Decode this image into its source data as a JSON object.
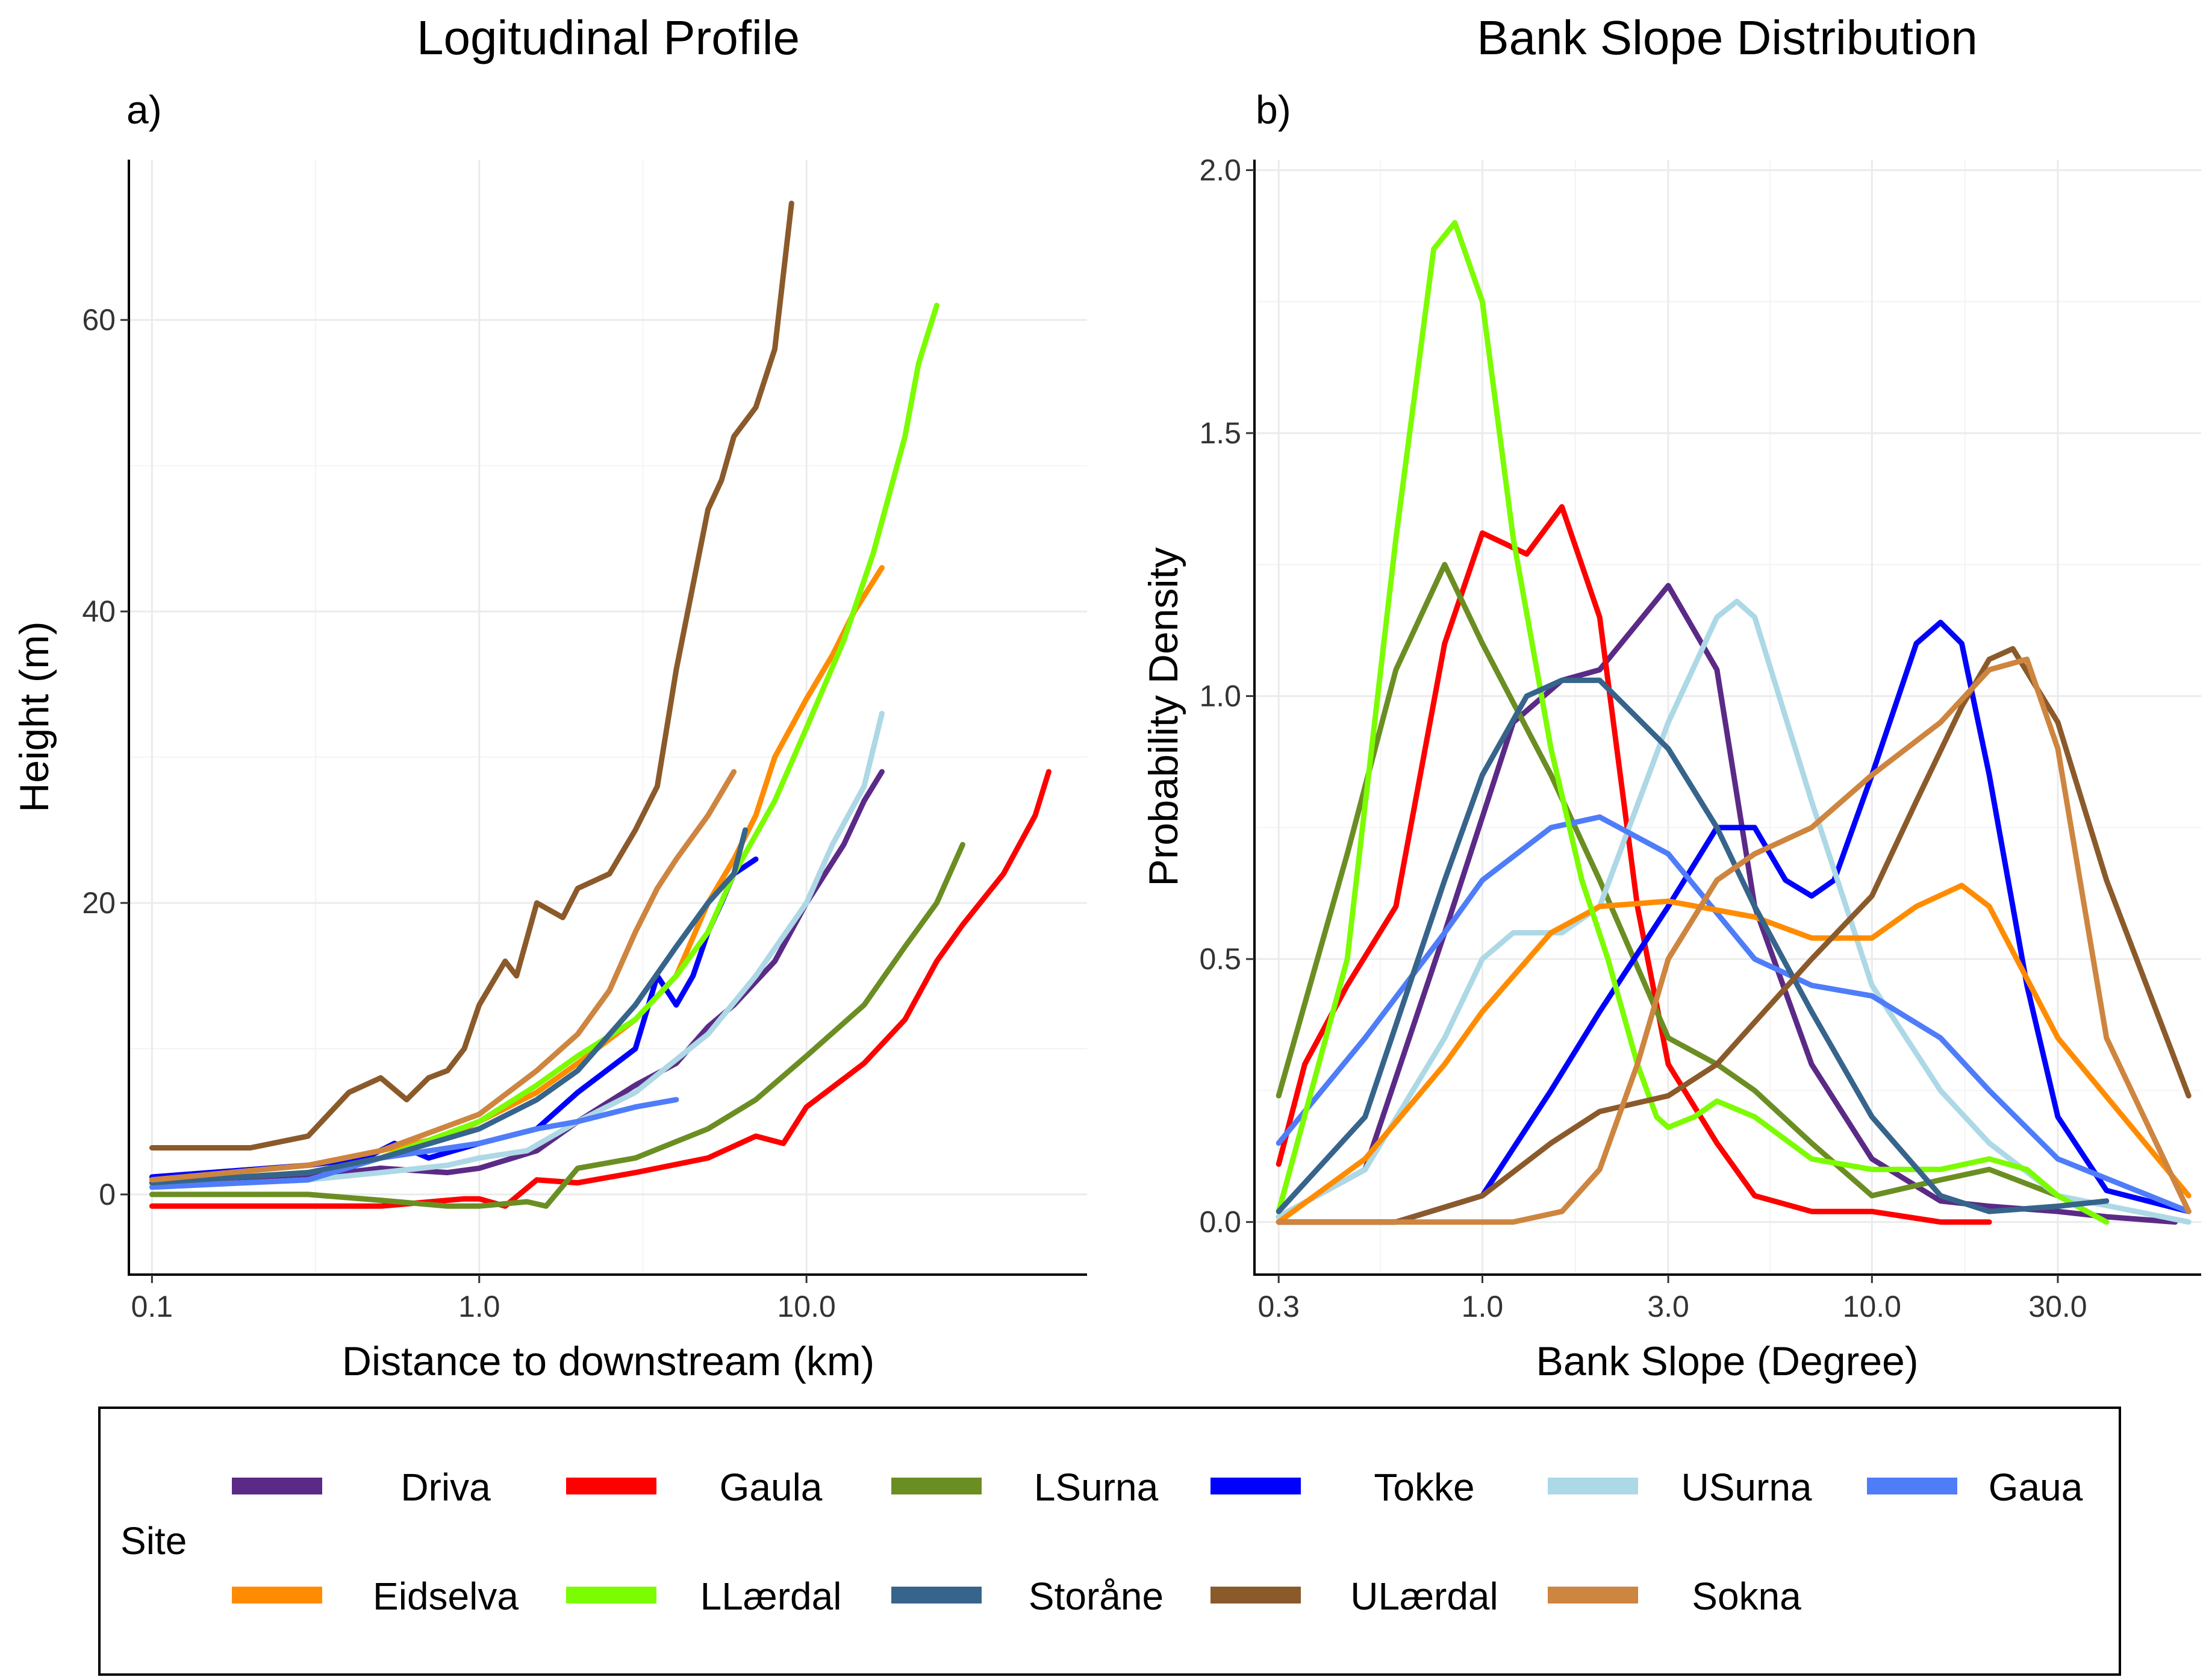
{
  "chart_data": [
    {
      "panel": "a)",
      "type": "line",
      "title": "Logitudinal Profile",
      "xlabel": "Distance to downstream (km)",
      "ylabel": "Height (m)",
      "xscale": "log10",
      "xlim": [
        0.085,
        72
      ],
      "ylim": [
        -5.5,
        71
      ],
      "xticks": [
        0.1,
        1.0,
        10.0
      ],
      "xtick_labels": [
        "0.1",
        "1.0",
        "10.0"
      ],
      "yticks": [
        0,
        20,
        40,
        60
      ],
      "ytick_labels": [
        "0",
        "20",
        "40",
        "60"
      ],
      "series": [
        {
          "name": "Driva",
          "x": [
            0.1,
            0.3,
            0.5,
            0.8,
            1.0,
            1.5,
            2.0,
            3.0,
            4.0,
            5.0,
            6.0,
            8.0,
            10.0,
            13.0,
            15.0,
            17.0
          ],
          "y": [
            0.8,
            1.2,
            1.8,
            1.5,
            1.8,
            3.0,
            5.0,
            7.5,
            9.0,
            11.5,
            13.0,
            16.0,
            20.0,
            24.0,
            27.0,
            29.0
          ]
        },
        {
          "name": "Gaula",
          "x": [
            0.1,
            0.5,
            0.9,
            1.0,
            1.2,
            1.5,
            2.0,
            3.0,
            5.0,
            7.0,
            8.5,
            10.0,
            15.0,
            20.0,
            25.0,
            30.0,
            40.0,
            50.0,
            55.0
          ],
          "y": [
            -0.8,
            -0.8,
            -0.3,
            -0.3,
            -0.8,
            1.0,
            0.8,
            1.5,
            2.5,
            4.0,
            3.5,
            6.0,
            9.0,
            12.0,
            16.0,
            18.5,
            22.0,
            26.0,
            29.0
          ]
        },
        {
          "name": "LSurna",
          "x": [
            0.1,
            0.3,
            0.5,
            0.8,
            1.0,
            1.4,
            1.6,
            2.0,
            3.0,
            5.0,
            7.0,
            10.0,
            15.0,
            20.0,
            25.0,
            30.0
          ],
          "y": [
            0.0,
            0.0,
            -0.4,
            -0.8,
            -0.8,
            -0.5,
            -0.8,
            1.8,
            2.5,
            4.5,
            6.5,
            9.5,
            13.0,
            17.0,
            20.0,
            24.0
          ]
        },
        {
          "name": "Tokke",
          "x": [
            0.1,
            0.3,
            0.45,
            0.55,
            0.7,
            1.0,
            1.5,
            2.0,
            3.0,
            3.5,
            4.0,
            4.5,
            5.0,
            5.5,
            6.0,
            7.0
          ],
          "y": [
            1.2,
            2.0,
            2.5,
            3.5,
            2.5,
            3.5,
            4.5,
            7.0,
            10.0,
            15.0,
            13.0,
            15.0,
            18.0,
            20.0,
            22.0,
            23.0
          ]
        },
        {
          "name": "USurna",
          "x": [
            0.1,
            0.3,
            0.5,
            0.8,
            1.0,
            1.4,
            2.0,
            3.0,
            5.0,
            7.0,
            10.0,
            12.0,
            15.0,
            17.0
          ],
          "y": [
            0.5,
            1.0,
            1.5,
            2.0,
            2.5,
            3.0,
            5.0,
            7.0,
            11.0,
            15.0,
            20.0,
            24.0,
            28.0,
            33.0
          ]
        },
        {
          "name": "Gaua",
          "x": [
            0.1,
            0.3,
            0.5,
            1.0,
            1.5,
            2.0,
            3.0,
            4.0
          ],
          "y": [
            0.5,
            1.0,
            2.5,
            3.5,
            4.5,
            5.0,
            6.0,
            6.5
          ]
        },
        {
          "name": "Eidselva",
          "x": [
            0.1,
            0.3,
            0.5,
            0.8,
            1.0,
            1.5,
            2.0,
            3.0,
            4.0,
            5.0,
            6.0,
            7.0,
            8.0,
            10.0,
            12.0,
            14.0,
            17.0
          ],
          "y": [
            1.0,
            2.0,
            3.0,
            4.0,
            5.0,
            7.0,
            9.0,
            12.0,
            15.0,
            20.0,
            23.0,
            26.0,
            30.0,
            34.0,
            37.0,
            40.0,
            43.0
          ]
        },
        {
          "name": "LLærdal",
          "x": [
            0.1,
            0.3,
            0.5,
            1.0,
            1.5,
            2.0,
            3.0,
            4.0,
            5.0,
            6.0,
            8.0,
            10.0,
            13.0,
            16.0,
            20.0,
            22.0,
            25.0
          ],
          "y": [
            0.8,
            1.5,
            2.5,
            5.0,
            7.5,
            9.5,
            12.0,
            15.0,
            18.0,
            22.0,
            27.0,
            32.0,
            38.0,
            44.0,
            52.0,
            57.0,
            61.0
          ]
        },
        {
          "name": "Storåne",
          "x": [
            0.1,
            0.3,
            0.5,
            1.0,
            1.5,
            2.0,
            3.0,
            4.0,
            5.0,
            6.0,
            6.5
          ],
          "y": [
            0.8,
            1.5,
            2.5,
            4.5,
            6.5,
            8.5,
            13.0,
            17.0,
            20.0,
            22.0,
            25.0
          ]
        },
        {
          "name": "ULærdal",
          "x": [
            0.1,
            0.2,
            0.3,
            0.4,
            0.5,
            0.6,
            0.7,
            0.8,
            0.9,
            1.0,
            1.2,
            1.3,
            1.5,
            1.8,
            2.0,
            2.5,
            3.0,
            3.5,
            4.0,
            5.0,
            5.5,
            6.0,
            7.0,
            8.0,
            9.0
          ],
          "y": [
            3.2,
            3.2,
            4.0,
            7.0,
            8.0,
            6.5,
            8.0,
            8.5,
            10.0,
            13.0,
            16.0,
            15.0,
            20.0,
            19.0,
            21.0,
            22.0,
            25.0,
            28.0,
            36.0,
            47.0,
            49.0,
            52.0,
            54.0,
            58.0,
            68.0
          ]
        },
        {
          "name": "Sokna",
          "x": [
            0.1,
            0.3,
            0.5,
            1.0,
            1.5,
            2.0,
            2.5,
            3.0,
            3.5,
            4.0,
            5.0,
            6.0
          ],
          "y": [
            1.0,
            2.0,
            3.0,
            5.5,
            8.5,
            11.0,
            14.0,
            18.0,
            21.0,
            23.0,
            26.0,
            29.0
          ]
        }
      ]
    },
    {
      "panel": "b)",
      "type": "line",
      "title": "Bank Slope Distribution",
      "xlabel": "Bank Slope (Degree)",
      "ylabel": "Probability Density",
      "xscale": "log10",
      "xlim": [
        0.26,
        70
      ],
      "ylim": [
        -0.1,
        2.02
      ],
      "xticks": [
        0.3,
        1.0,
        3.0,
        10.0,
        30.0
      ],
      "xtick_labels": [
        "0.3",
        "1.0",
        "3.0",
        "10.0",
        "30.0"
      ],
      "yticks": [
        0.0,
        0.5,
        1.0,
        1.5,
        2.0
      ],
      "ytick_labels": [
        "0.0",
        "0.5",
        "1.0",
        "1.5",
        "2.0"
      ],
      "series": [
        {
          "name": "Driva",
          "x": [
            0.3,
            0.5,
            0.8,
            1.2,
            1.6,
            2.0,
            3.0,
            4.0,
            5.0,
            7.0,
            10.0,
            15.0,
            20.0,
            30.0,
            40.0,
            60.0
          ],
          "y": [
            0.01,
            0.1,
            0.55,
            0.95,
            1.03,
            1.05,
            1.21,
            1.05,
            0.6,
            0.3,
            0.12,
            0.04,
            0.03,
            0.02,
            0.01,
            0.0
          ]
        },
        {
          "name": "Gaula",
          "x": [
            0.3,
            0.35,
            0.45,
            0.6,
            0.8,
            1.0,
            1.3,
            1.6,
            2.0,
            2.5,
            3.0,
            4.0,
            5.0,
            7.0,
            10.0,
            15.0,
            20.0
          ],
          "y": [
            0.11,
            0.3,
            0.45,
            0.6,
            1.1,
            1.31,
            1.27,
            1.36,
            1.15,
            0.6,
            0.3,
            0.15,
            0.05,
            0.02,
            0.02,
            0.0,
            0.0
          ]
        },
        {
          "name": "LSurna",
          "x": [
            0.3,
            0.45,
            0.6,
            0.8,
            1.0,
            1.5,
            2.0,
            3.0,
            4.0,
            5.0,
            7.0,
            10.0,
            15.0,
            20.0,
            30.0,
            40.0
          ],
          "y": [
            0.24,
            0.7,
            1.05,
            1.25,
            1.1,
            0.85,
            0.65,
            0.35,
            0.3,
            0.25,
            0.15,
            0.05,
            0.08,
            0.1,
            0.05,
            0.0
          ]
        },
        {
          "name": "Tokke",
          "x": [
            0.3,
            0.6,
            1.0,
            1.5,
            2.0,
            3.0,
            4.0,
            5.0,
            6.0,
            7.0,
            8.0,
            10.0,
            13.0,
            15.0,
            17.0,
            20.0,
            25.0,
            30.0,
            40.0,
            65.0
          ],
          "y": [
            0.0,
            0.0,
            0.05,
            0.25,
            0.4,
            0.6,
            0.75,
            0.75,
            0.65,
            0.62,
            0.65,
            0.85,
            1.1,
            1.14,
            1.1,
            0.85,
            0.45,
            0.2,
            0.06,
            0.02
          ]
        },
        {
          "name": "USurna",
          "x": [
            0.3,
            0.5,
            0.8,
            1.0,
            1.2,
            1.6,
            2.0,
            3.0,
            4.0,
            4.5,
            5.0,
            7.0,
            10.0,
            15.0,
            20.0,
            30.0,
            65.0
          ],
          "y": [
            0.01,
            0.1,
            0.35,
            0.5,
            0.55,
            0.55,
            0.6,
            0.95,
            1.15,
            1.18,
            1.15,
            0.8,
            0.45,
            0.25,
            0.15,
            0.05,
            0.0
          ]
        },
        {
          "name": "Gaua",
          "x": [
            0.3,
            0.5,
            0.8,
            1.0,
            1.5,
            2.0,
            3.0,
            5.0,
            7.0,
            10.0,
            15.0,
            20.0,
            30.0,
            65.0
          ],
          "y": [
            0.15,
            0.35,
            0.55,
            0.65,
            0.75,
            0.77,
            0.7,
            0.5,
            0.45,
            0.43,
            0.35,
            0.25,
            0.12,
            0.02
          ]
        },
        {
          "name": "Eidselva",
          "x": [
            0.3,
            0.5,
            0.8,
            1.0,
            1.5,
            2.0,
            3.0,
            5.0,
            7.0,
            10.0,
            13.0,
            17.0,
            20.0,
            30.0,
            65.0
          ],
          "y": [
            0.0,
            0.12,
            0.3,
            0.4,
            0.55,
            0.6,
            0.61,
            0.58,
            0.54,
            0.54,
            0.6,
            0.64,
            0.6,
            0.35,
            0.05
          ]
        },
        {
          "name": "LLærdal",
          "x": [
            0.3,
            0.45,
            0.6,
            0.75,
            0.85,
            1.0,
            1.2,
            1.5,
            1.8,
            2.1,
            2.5,
            2.8,
            3.0,
            3.5,
            4.0,
            5.0,
            7.0,
            10.0,
            15.0,
            20.0,
            25.0,
            30.0,
            40.0
          ],
          "y": [
            0.02,
            0.5,
            1.3,
            1.85,
            1.9,
            1.75,
            1.3,
            0.9,
            0.65,
            0.5,
            0.3,
            0.2,
            0.18,
            0.2,
            0.23,
            0.2,
            0.12,
            0.1,
            0.1,
            0.12,
            0.1,
            0.05,
            0.0
          ]
        },
        {
          "name": "Storåne",
          "x": [
            0.3,
            0.5,
            0.8,
            1.0,
            1.3,
            1.6,
            2.0,
            3.0,
            4.0,
            5.0,
            7.0,
            10.0,
            15.0,
            20.0,
            30.0,
            40.0
          ],
          "y": [
            0.02,
            0.2,
            0.65,
            0.85,
            1.0,
            1.03,
            1.03,
            0.9,
            0.75,
            0.6,
            0.4,
            0.2,
            0.05,
            0.02,
            0.03,
            0.04
          ]
        },
        {
          "name": "ULærdal",
          "x": [
            0.3,
            0.6,
            1.0,
            1.5,
            2.0,
            3.0,
            4.0,
            5.0,
            7.0,
            10.0,
            13.0,
            17.0,
            20.0,
            23.0,
            30.0,
            40.0,
            65.0
          ],
          "y": [
            0.0,
            0.0,
            0.05,
            0.15,
            0.21,
            0.24,
            0.3,
            0.38,
            0.5,
            0.62,
            0.8,
            0.98,
            1.07,
            1.09,
            0.95,
            0.65,
            0.24
          ]
        },
        {
          "name": "Sokna",
          "x": [
            0.3,
            1.2,
            1.6,
            2.0,
            2.5,
            3.0,
            4.0,
            5.0,
            7.0,
            10.0,
            15.0,
            20.0,
            25.0,
            30.0,
            40.0,
            65.0
          ],
          "y": [
            0.0,
            0.0,
            0.02,
            0.1,
            0.3,
            0.5,
            0.65,
            0.7,
            0.75,
            0.85,
            0.95,
            1.05,
            1.07,
            0.9,
            0.35,
            0.02
          ]
        }
      ]
    }
  ],
  "legend": {
    "title": "Site",
    "items": [
      {
        "name": "Driva",
        "color": "#5b2a86"
      },
      {
        "name": "Gaula",
        "color": "#ff0000"
      },
      {
        "name": "LSurna",
        "color": "#6b8e23"
      },
      {
        "name": "Tokke",
        "color": "#0000ff"
      },
      {
        "name": "USurna",
        "color": "#add8e6"
      },
      {
        "name": "Gaua",
        "color": "#4f7df9"
      },
      {
        "name": "Eidselva",
        "color": "#ff8c00"
      },
      {
        "name": "LLærdal",
        "color": "#7cfc00"
      },
      {
        "name": "Storåne",
        "color": "#36648b"
      },
      {
        "name": "ULærdal",
        "color": "#8b5a2b"
      },
      {
        "name": "Sokna",
        "color": "#cd853f"
      }
    ]
  }
}
